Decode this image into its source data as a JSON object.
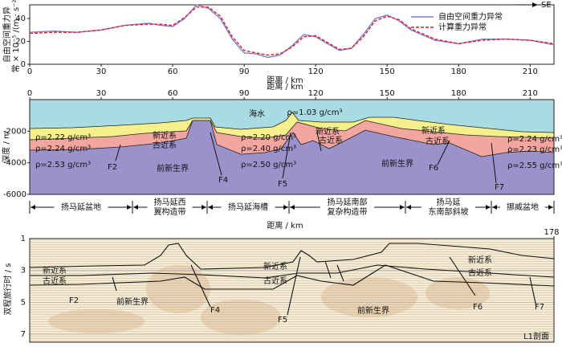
{
  "chart_data": [
    {
      "type": "line",
      "ylabel": [
        "自由空间重力异",
        "常 × 10⁻⁵ /(m · s⁻²)"
      ],
      "xlabel": "距离 / km",
      "annotation": "SE",
      "x": [
        0,
        10,
        20,
        30,
        40,
        50,
        55,
        60,
        65,
        70,
        75,
        80,
        85,
        90,
        95,
        100,
        105,
        110,
        115,
        120,
        125,
        130,
        135,
        140,
        145,
        150,
        155,
        160,
        170,
        180,
        190,
        200,
        210,
        220
      ],
      "series": [
        {
          "name": "自由空间重力异常",
          "color": "#7b7fd4",
          "style": "solid",
          "values": [
            28,
            29,
            28,
            30,
            34,
            36,
            34,
            33,
            40,
            52,
            49,
            40,
            22,
            10,
            9,
            6,
            8,
            16,
            26,
            24,
            18,
            12,
            14,
            26,
            40,
            43,
            38,
            30,
            21,
            18,
            22,
            22,
            21,
            17
          ]
        },
        {
          "name": "计算重力异常",
          "color": "#e0202a",
          "style": "dashed",
          "values": [
            27,
            28,
            28,
            30,
            34,
            35,
            35,
            34,
            41,
            50,
            50,
            42,
            24,
            12,
            10,
            8,
            9,
            15,
            24,
            25,
            19,
            13,
            14,
            24,
            38,
            42,
            39,
            31,
            22,
            18,
            21,
            22,
            21,
            18
          ]
        }
      ],
      "xlim": [
        0,
        220
      ],
      "xticks": [
        0,
        30,
        60,
        90,
        120,
        150,
        180,
        210
      ],
      "ylim": [
        0,
        52
      ],
      "yticks": [
        0,
        20,
        40
      ],
      "legend": "upper right"
    },
    {
      "type": "section",
      "xlabel": "距离 / km",
      "xlabel_bottom": "距离 / km",
      "ylabel": "深度 / m",
      "xlim": [
        0,
        220
      ],
      "xticks": [
        0,
        30,
        60,
        90,
        120,
        150,
        180,
        210
      ],
      "ylim": [
        -6000,
        0
      ],
      "yticks": [
        -2000,
        -4000,
        -6000
      ],
      "labels": [
        "海水",
        "ρ=1.03 g/cm³",
        "ρ=2.22 g/cm³",
        "ρ=2.24 g/cm³",
        "ρ=2.53 g/cm³",
        "新近系",
        "古近系",
        "前新生界",
        "F2",
        "F4",
        "ρ=2.20 g/cm³",
        "ρ=2.40 g/cm³",
        "ρ=2.50 g/cm³",
        "F5",
        "新近系",
        "古近系",
        "前新生界",
        "F6",
        "F7",
        "新近系",
        "古近系",
        "ρ=2.24 g/cm³",
        "ρ=2.23 g/cm³",
        "ρ=2.55 g/cm³"
      ],
      "regions": [
        [
          "扬马延盆地"
        ],
        [
          "扬马延西",
          "翼构造带"
        ],
        [
          "扬马延海槽"
        ],
        [
          "扬马延南部",
          "复杂构造带"
        ],
        [
          "扬马延",
          "东南部斜坡"
        ],
        [
          "挪威盆地"
        ]
      ]
    },
    {
      "type": "seismic",
      "ylabel": "双程旅行时 / s",
      "xlim": [
        1,
        178
      ],
      "xticks": [
        178
      ],
      "ylim": [
        1,
        7.5
      ],
      "yticks": [
        1,
        3,
        5,
        7
      ],
      "labels": [
        "新近系",
        "古近系",
        "F2",
        "前新生界",
        "F4",
        "新近系",
        "古近系",
        "F5",
        "前新生界",
        "新近系",
        "古近系",
        "F6",
        "F7"
      ],
      "profile": "L1剖面"
    }
  ]
}
